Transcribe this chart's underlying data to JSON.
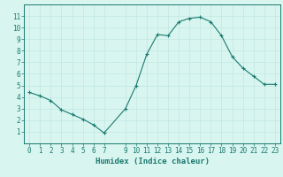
{
  "xlabel": "Humidex (Indice chaleur)",
  "x": [
    0,
    1,
    2,
    3,
    4,
    5,
    6,
    7,
    9,
    10,
    11,
    12,
    13,
    14,
    15,
    16,
    17,
    18,
    19,
    20,
    21,
    22,
    23
  ],
  "y": [
    4.4,
    4.1,
    3.7,
    2.9,
    2.5,
    2.1,
    1.6,
    0.9,
    3.0,
    5.0,
    7.7,
    9.4,
    9.3,
    10.5,
    10.8,
    10.9,
    10.5,
    9.3,
    7.5,
    6.5,
    5.8,
    5.1,
    5.1
  ],
  "line_color": "#1a7a6e",
  "marker": "+",
  "marker_size": 3,
  "bg_color": "#d8f5f0",
  "grid_color": "#c0e8e2",
  "spine_color": "#1a7a6e",
  "tick_color": "#1a7a6e",
  "label_color": "#1a7a6e",
  "ylim": [
    0,
    12
  ],
  "xlim": [
    -0.5,
    23.5
  ],
  "yticks": [
    1,
    2,
    3,
    4,
    5,
    6,
    7,
    8,
    9,
    10,
    11
  ],
  "xticks": [
    0,
    1,
    2,
    3,
    4,
    5,
    6,
    7,
    9,
    10,
    11,
    12,
    13,
    14,
    15,
    16,
    17,
    18,
    19,
    20,
    21,
    22,
    23
  ],
  "axis_fontsize": 6.5,
  "tick_fontsize": 5.5,
  "linewidth": 0.8,
  "markeredgewidth": 0.8
}
